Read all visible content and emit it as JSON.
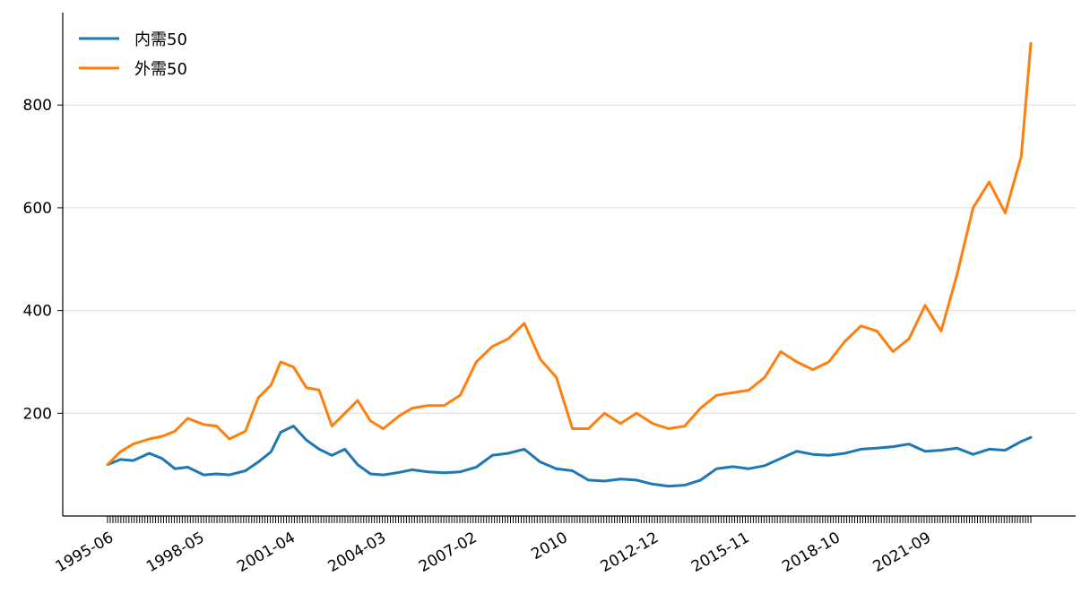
{
  "colors": {
    "series_0": "#1f77b4",
    "series_1": "#ff7f0e",
    "grid": "#dddddd",
    "axis": "#000000"
  },
  "chart_data": {
    "type": "line",
    "title": "",
    "xlabel": "",
    "ylabel": "",
    "grid": "horizontal",
    "legend": "top-left",
    "ylim": [
      0,
      980
    ],
    "y_ticks": [
      "200",
      "400",
      "600",
      "800"
    ],
    "x_tick_labels": [
      "1995-06",
      "1998-05",
      "2001-04",
      "2004-03",
      "2007-02",
      "2010",
      "2012-12",
      "2015-11",
      "2018-10",
      "2021-09"
    ],
    "series": [
      {
        "name": "内需50",
        "color": "#1f77b4",
        "x": [
          1995.5,
          1995.9,
          1996.3,
          1996.8,
          1997.2,
          1997.6,
          1998.0,
          1998.5,
          1998.9,
          1999.3,
          1999.8,
          2000.2,
          2000.6,
          2000.9,
          2001.3,
          2001.7,
          2002.1,
          2002.5,
          2002.9,
          2003.3,
          2003.7,
          2004.1,
          2004.6,
          2005.0,
          2005.5,
          2006.0,
          2006.5,
          2007.0,
          2007.5,
          2008.0,
          2008.5,
          2009.0,
          2009.5,
          2010.0,
          2010.5,
          2011.0,
          2011.5,
          2012.0,
          2012.5,
          2013.0,
          2013.5,
          2014.0,
          2014.5,
          2015.0,
          2015.5,
          2016.0,
          2016.5,
          2017.0,
          2017.5,
          2018.0,
          2018.5,
          2019.0,
          2019.5,
          2020.0,
          2020.5,
          2021.0,
          2021.5,
          2022.0,
          2022.5,
          2023.0,
          2023.5,
          2024.0,
          2024.3
        ],
        "values": [
          100,
          110,
          108,
          122,
          112,
          92,
          95,
          80,
          82,
          80,
          88,
          105,
          125,
          163,
          175,
          148,
          130,
          118,
          130,
          100,
          82,
          80,
          85,
          90,
          86,
          84,
          86,
          95,
          118,
          122,
          130,
          105,
          92,
          88,
          70,
          68,
          72,
          70,
          62,
          58,
          60,
          70,
          92,
          96,
          92,
          98,
          112,
          126,
          120,
          118,
          122,
          130,
          132,
          135,
          140,
          126,
          128,
          132,
          120,
          130,
          128,
          145,
          153
        ]
      },
      {
        "name": "外需50",
        "color": "#ff7f0e",
        "x": [
          1995.5,
          1995.9,
          1996.3,
          1996.8,
          1997.2,
          1997.6,
          1998.0,
          1998.5,
          1998.9,
          1999.3,
          1999.8,
          2000.2,
          2000.6,
          2000.9,
          2001.3,
          2001.7,
          2002.1,
          2002.5,
          2002.9,
          2003.3,
          2003.7,
          2004.1,
          2004.6,
          2005.0,
          2005.5,
          2006.0,
          2006.5,
          2007.0,
          2007.5,
          2008.0,
          2008.5,
          2009.0,
          2009.5,
          2010.0,
          2010.5,
          2011.0,
          2011.5,
          2012.0,
          2012.5,
          2013.0,
          2013.5,
          2014.0,
          2014.5,
          2015.0,
          2015.5,
          2016.0,
          2016.5,
          2017.0,
          2017.5,
          2018.0,
          2018.5,
          2019.0,
          2019.5,
          2020.0,
          2020.5,
          2021.0,
          2021.5,
          2022.0,
          2022.5,
          2023.0,
          2023.5,
          2024.0,
          2024.3
        ],
        "values": [
          100,
          125,
          140,
          150,
          155,
          165,
          190,
          178,
          175,
          150,
          165,
          230,
          255,
          300,
          290,
          250,
          245,
          175,
          200,
          225,
          185,
          170,
          195,
          210,
          215,
          215,
          235,
          300,
          330,
          345,
          375,
          305,
          270,
          170,
          170,
          200,
          180,
          200,
          180,
          170,
          175,
          210,
          235,
          240,
          245,
          270,
          320,
          300,
          285,
          300,
          340,
          370,
          360,
          320,
          345,
          410,
          360,
          470,
          600,
          650,
          590,
          700,
          920
        ]
      }
    ]
  }
}
